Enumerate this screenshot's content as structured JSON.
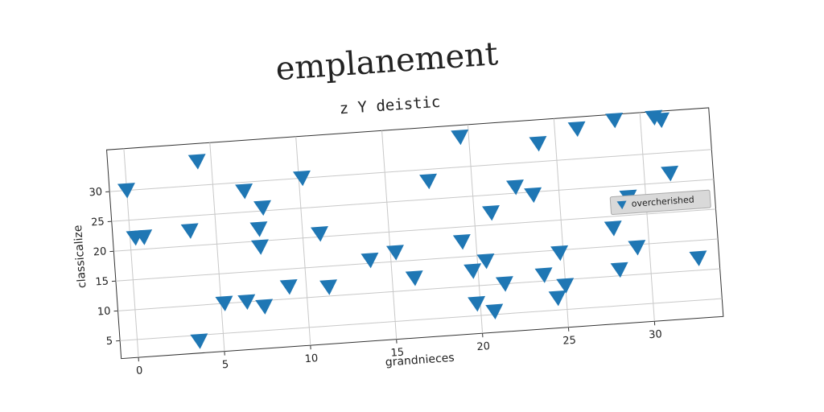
{
  "chart_data": {
    "type": "scatter",
    "title": "emplanement",
    "subtitle": "z Y deistic",
    "xlabel": "grandnieces",
    "ylabel": "classicalize",
    "x": [
      0,
      0.3,
      0.8,
      3.5,
      3.6,
      4.2,
      5.2,
      6.5,
      6.8,
      7.5,
      7.5,
      7.5,
      7.8,
      9,
      10.2,
      11,
      11.3,
      13.8,
      15.3,
      16.3,
      17.5,
      19.2,
      19.5,
      19.7,
      19.8,
      20.5,
      20.8,
      21,
      21.5,
      22.5,
      23.5,
      23.8,
      24,
      24.5,
      24.8,
      25,
      26.3,
      28,
      28.2,
      28.5,
      29,
      29.3,
      30.8,
      31.2,
      31.5,
      32.8
    ],
    "series": [
      {
        "name": "overcherished",
        "color": "#1f77b4",
        "values": [
          30,
          22,
          22,
          22.5,
          4,
          34,
          10,
          10,
          28.5,
          9,
          22,
          19,
          25.5,
          12,
          30,
          20.5,
          11.5,
          15.5,
          16.5,
          12,
          28,
          17.5,
          35,
          12.5,
          7,
          14,
          5.5,
          22,
          10,
          26,
          24.5,
          11,
          33,
          7,
          14.5,
          9,
          35,
          18,
          11,
          36,
          23,
          14.5,
          36,
          35.5,
          26.5,
          12
        ]
      }
    ],
    "xlim": [
      -1,
      34
    ],
    "ylim": [
      2,
      37
    ],
    "xticks": [
      0,
      5,
      10,
      15,
      20,
      25,
      30
    ],
    "yticks": [
      5,
      10,
      15,
      20,
      25,
      30
    ],
    "grid": true,
    "legend": "right"
  }
}
